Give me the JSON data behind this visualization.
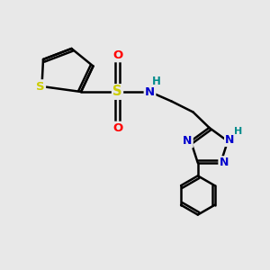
{
  "bg_color": "#e8e8e8",
  "atom_colors": {
    "C": "#000000",
    "N": "#0000cc",
    "S_thio": "#cccc00",
    "S_sulfonyl": "#cccc00",
    "O": "#ff0000",
    "H": "#008b8b"
  },
  "lw": 1.8,
  "xlim": [
    0,
    10
  ],
  "ylim": [
    0,
    10
  ]
}
